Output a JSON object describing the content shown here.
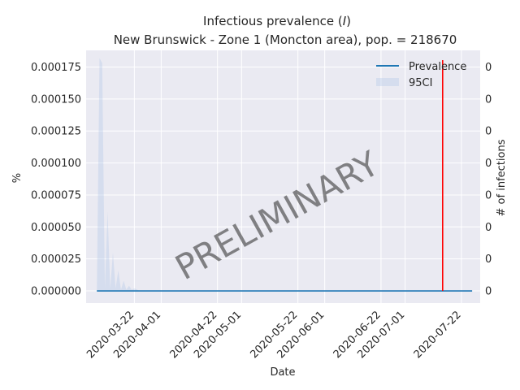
{
  "chart_data": {
    "type": "line",
    "title_main": "Infectious prevalence (",
    "title_italic": "I",
    "title_tail": ")",
    "subtitle": "New Brunswick - Zone 1 (Moncton area), pop. = 218670",
    "xlabel": "Date",
    "ylabel_left": "%",
    "ylabel_right": "# of infections",
    "watermark": "PRELIMINARY",
    "x_start": "2020-03-08",
    "x_end": "2020-07-26",
    "xlim": [
      "2020-03-04",
      "2020-07-29"
    ],
    "ylim": [
      -9.5e-06,
      0.000188
    ],
    "grid": true,
    "legend_position": "top-right",
    "x_ticks": [
      "2020-03-22",
      "2020-04-01",
      "2020-04-22",
      "2020-05-01",
      "2020-05-22",
      "2020-06-01",
      "2020-06-22",
      "2020-07-01",
      "2020-07-22"
    ],
    "y_ticks_left": [
      "0.000000",
      "0.000025",
      "0.000050",
      "0.000075",
      "0.000100",
      "0.000125",
      "0.000150",
      "0.000175"
    ],
    "y_tick_values": [
      0,
      2.5e-05,
      5e-05,
      7.5e-05,
      0.0001,
      0.000125,
      0.00015,
      0.000175
    ],
    "y_ticks_right": [
      "0",
      "0",
      "0",
      "0",
      "0",
      "0",
      "0",
      "0"
    ],
    "series": [
      {
        "name": "Prevalence",
        "color": "#1f77b4",
        "x": [
          "2020-03-08",
          "2020-07-26"
        ],
        "values": [
          0,
          0
        ]
      },
      {
        "name": "95CI",
        "color": "#aec7e8",
        "ci_upper": [
          {
            "date": "2020-03-08",
            "value": 0
          },
          {
            "date": "2020-03-09",
            "value": 0.000182
          },
          {
            "date": "2020-03-10",
            "value": 0.000178
          },
          {
            "date": "2020-03-11",
            "value": 2e-06
          },
          {
            "date": "2020-03-12",
            "value": 6.2e-05
          },
          {
            "date": "2020-03-13",
            "value": 2e-06
          },
          {
            "date": "2020-03-14",
            "value": 3e-05
          },
          {
            "date": "2020-03-15",
            "value": 2e-06
          },
          {
            "date": "2020-03-16",
            "value": 1.6e-05
          },
          {
            "date": "2020-03-17",
            "value": 1e-06
          },
          {
            "date": "2020-03-18",
            "value": 8e-06
          },
          {
            "date": "2020-03-19",
            "value": 1e-06
          },
          {
            "date": "2020-03-20",
            "value": 4e-06
          },
          {
            "date": "2020-03-21",
            "value": 1e-06
          },
          {
            "date": "2020-03-22",
            "value": 2e-06
          },
          {
            "date": "2020-03-24",
            "value": 0
          }
        ]
      }
    ],
    "marker_line": {
      "date": "2020-07-15",
      "color": "#ff0000"
    }
  }
}
